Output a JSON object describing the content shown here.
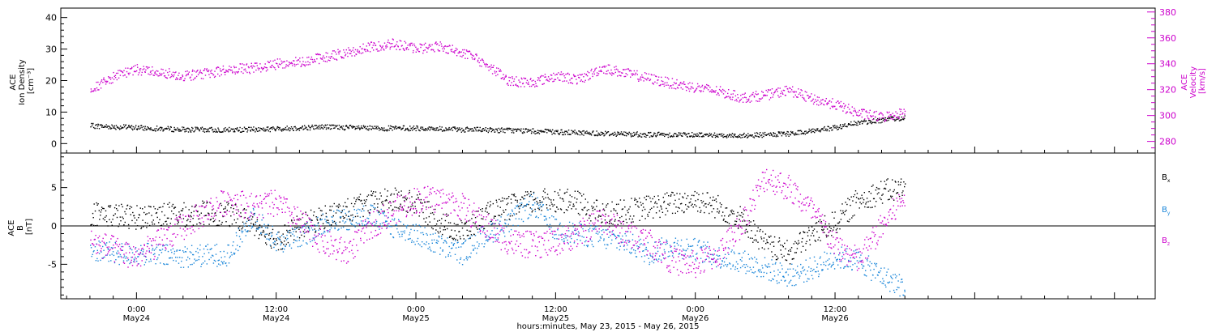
{
  "chart_data": [
    {
      "type": "scatter",
      "panel": "top",
      "ylabel_left": [
        "ACE",
        "Ion Density",
        "[cm⁻³]"
      ],
      "ylabel_right": [
        "ACE",
        "Velocity",
        "[km/s]"
      ],
      "yticks_left": [
        "0",
        "10",
        "20",
        "30",
        "40"
      ],
      "yticks_right": [
        "280",
        "300",
        "320",
        "340",
        "360",
        "380"
      ],
      "ylim_left": [
        -3,
        43
      ],
      "ylim_right": [
        271,
        383
      ],
      "grid": false,
      "series": [
        {
          "axis": "left",
          "color": "#000000",
          "x": [
            -4,
            0,
            4,
            8,
            12,
            16,
            20,
            24,
            28,
            32,
            36,
            40,
            44,
            48,
            52,
            56,
            60,
            62,
            64,
            66
          ],
          "y": [
            5.8,
            5.2,
            4.6,
            4.5,
            4.8,
            5.5,
            5.0,
            5.0,
            4.6,
            4.4,
            3.8,
            3.4,
            3.0,
            3.0,
            2.7,
            3.2,
            5.2,
            6.8,
            7.6,
            8.4
          ],
          "spread": 0.8
        },
        {
          "axis": "right",
          "color": "#cc00cc",
          "x": [
            -4,
            -2,
            0,
            2,
            4,
            6,
            8,
            10,
            12,
            14,
            16,
            18,
            20,
            22,
            24,
            26,
            28,
            30,
            32,
            34,
            36,
            38,
            40,
            42,
            44,
            46,
            48,
            50,
            52,
            54,
            56,
            58,
            60,
            62,
            64,
            66
          ],
          "y": [
            320,
            330,
            336,
            334,
            331,
            333,
            336,
            337,
            340,
            342,
            345,
            349,
            353,
            356,
            352,
            354,
            349,
            340,
            327,
            326,
            331,
            328,
            337,
            333,
            329,
            325,
            322,
            319,
            314,
            316,
            320,
            313,
            309,
            302,
            299,
            303
          ],
          "spread": 4
        }
      ]
    },
    {
      "type": "scatter",
      "panel": "bottom",
      "ylabel_left": [
        "ACE",
        "B",
        "[nT]"
      ],
      "yticks_left": [
        "-5",
        "0",
        "5"
      ],
      "ylim": [
        -9.5,
        9.5
      ],
      "zero_line": true,
      "legend_position": "right",
      "grid": false,
      "series": [
        {
          "name": "Bx",
          "color": "#000000",
          "x": [
            -4,
            -2,
            0,
            2,
            4,
            6,
            8,
            10,
            12,
            14,
            16,
            18,
            20,
            22,
            24,
            26,
            28,
            30,
            32,
            34,
            36,
            38,
            40,
            42,
            44,
            46,
            48,
            50,
            52,
            54,
            56,
            58,
            60,
            62,
            64,
            66
          ],
          "y": [
            1.7,
            1.5,
            1.2,
            1.6,
            1.5,
            1.8,
            1.5,
            0.5,
            -1.8,
            0.0,
            1.2,
            2.0,
            3.0,
            3.5,
            3.0,
            0.5,
            -0.8,
            1.5,
            2.5,
            3.2,
            3.5,
            3.0,
            1.5,
            2.0,
            2.5,
            3.0,
            3.5,
            2.5,
            1.0,
            -2.5,
            -3.5,
            -1.0,
            0.5,
            3.5,
            4.5,
            5.0
          ],
          "spread": 1.6
        },
        {
          "name": "By",
          "color": "#1a86d9",
          "x": [
            -4,
            -2,
            0,
            2,
            4,
            6,
            8,
            10,
            12,
            14,
            16,
            18,
            20,
            22,
            24,
            26,
            28,
            30,
            32,
            34,
            36,
            38,
            40,
            42,
            44,
            46,
            48,
            50,
            52,
            54,
            56,
            58,
            60,
            62,
            64,
            66
          ],
          "y": [
            -2.8,
            -3.6,
            -3.5,
            -3.8,
            -3.9,
            -3.8,
            -3.6,
            1.5,
            -2.0,
            -1.5,
            0.5,
            1.0,
            1.5,
            0.0,
            -1.0,
            -2.5,
            -3.5,
            -1.0,
            0.5,
            3.0,
            -0.5,
            -1.0,
            -1.5,
            -2.0,
            -3.5,
            -2.5,
            -3.0,
            -4.0,
            -4.5,
            -5.5,
            -6.5,
            -5.5,
            -4.0,
            -4.5,
            -6.5,
            -8.0
          ],
          "spread": 1.5
        },
        {
          "name": "Bz",
          "color": "#cc00cc",
          "x": [
            -4,
            -2,
            0,
            2,
            4,
            6,
            8,
            10,
            12,
            14,
            16,
            18,
            20,
            22,
            24,
            26,
            28,
            30,
            32,
            34,
            36,
            38,
            40,
            42,
            44,
            46,
            48,
            50,
            52,
            54,
            56,
            58,
            60,
            62,
            64,
            66
          ],
          "y": [
            -2.0,
            -3.0,
            -4.0,
            -2.0,
            0.0,
            2.0,
            3.5,
            2.5,
            3.0,
            0.5,
            -2.0,
            -3.5,
            0.0,
            2.0,
            3.5,
            3.5,
            2.5,
            0.0,
            -2.0,
            -2.5,
            -2.0,
            -1.0,
            1.0,
            -1.0,
            -2.0,
            -4.5,
            -5.0,
            -3.5,
            0.5,
            6.5,
            5.0,
            2.0,
            -2.5,
            -4.5,
            0.0,
            4.0
          ],
          "spread": 1.8
        }
      ]
    }
  ],
  "legend": {
    "bx": {
      "text": "B",
      "sub": "x",
      "color": "#000000"
    },
    "by": {
      "text": "B",
      "sub": "y",
      "color": "#1a86d9"
    },
    "bz": {
      "text": "B",
      "sub": "z",
      "color": "#cc00cc"
    }
  },
  "x_axis": {
    "range": [
      -6.5,
      87.5
    ],
    "xlabel": "hours:minutes, May 23, 2015 - May 26, 2015",
    "ticks": [
      {
        "x": 0,
        "time": "0:00",
        "date": "May24"
      },
      {
        "x": 12,
        "time": "12:00",
        "date": "May24"
      },
      {
        "x": 24,
        "time": "0:00",
        "date": "May25"
      },
      {
        "x": 36,
        "time": "12:00",
        "date": "May25"
      },
      {
        "x": 48,
        "time": "0:00",
        "date": "May26"
      },
      {
        "x": 60,
        "time": "12:00",
        "date": "May26"
      }
    ]
  }
}
